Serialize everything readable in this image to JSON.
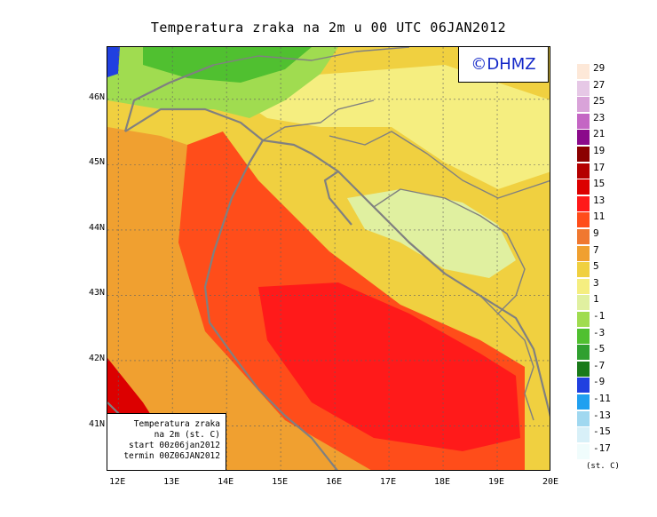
{
  "title": "Temperatura zraka na 2m u 00 UTC 06JAN2012",
  "watermark": "©DHMZ",
  "info_box": {
    "line1": "Temperatura zraka",
    "line2": "na 2m (st. C)",
    "line3": "start 00z06jan2012",
    "line4": "termin 00Z06JAN2012"
  },
  "axes": {
    "x_ticks": [
      "12E",
      "13E",
      "14E",
      "15E",
      "16E",
      "17E",
      "18E",
      "19E",
      "20E"
    ],
    "y_ticks": [
      "46N",
      "45N",
      "44N",
      "43N",
      "42N",
      "41N"
    ],
    "lon_range": [
      11.8,
      20.0
    ],
    "lat_range": [
      40.3,
      46.8
    ]
  },
  "legend": {
    "labels": [
      "29",
      "27",
      "25",
      "23",
      "21",
      "19",
      "17",
      "15",
      "13",
      "11",
      "9",
      "7",
      "5",
      "3",
      "1",
      "-1",
      "-3",
      "-5",
      "-7",
      "-9",
      "-11",
      "-13",
      "-15",
      "-17"
    ],
    "colors": [
      "#fde8d8",
      "#e6c8e6",
      "#d9a3d9",
      "#c466c4",
      "#8b0a8b",
      "#8b0000",
      "#b40000",
      "#dc0000",
      "#ff1a1a",
      "#ff4d1a",
      "#f07830",
      "#f0a030",
      "#f0d040",
      "#f5ee80",
      "#e0f0a0",
      "#a0dc50",
      "#50c030",
      "#30a030",
      "#1a7a1a",
      "#2040e0",
      "#20a0f0",
      "#a0d8f0",
      "#d8f0f8",
      "#f0fcfc"
    ],
    "units": "(st. C)"
  },
  "map_layers": {
    "background": "#f0a030",
    "land_warm": "#f0d040",
    "land_mild": "#f5ee80",
    "land_cool": "#e0f0a0",
    "alpine": "#a0dc50",
    "alpine_cold": "#50c030",
    "alpine_coldest": "#2040e0",
    "sea_warm": "#ff4d1a",
    "sea_core": "#ff1a1a",
    "south_sea": "#dc0000",
    "boundaries": "#808080",
    "grid": "#606060"
  }
}
